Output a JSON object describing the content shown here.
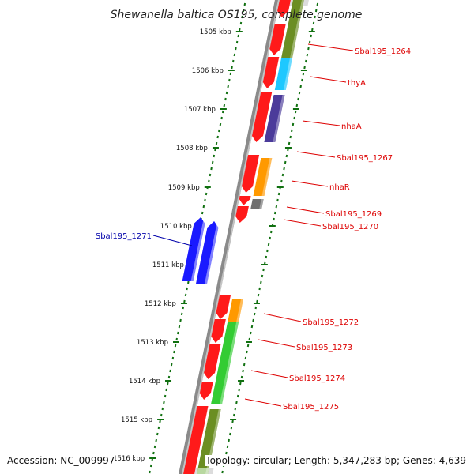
{
  "title": "Shewanella baltica OS195, complete genome",
  "footer": {
    "accession_label": "Accession:",
    "accession": "NC_009997",
    "topology_label": "Topology:",
    "topology": "circular",
    "length_label": "Length:",
    "length": "5,347,283 bp",
    "genes_label": "Genes:",
    "genes": "4,639"
  },
  "colors": {
    "forward_strand_red": "#ff1a1a",
    "reverse_strand_blue": "#1a1aff",
    "label_red": "#dd0000",
    "label_blue": "#0000aa",
    "ticks_green": "#107010"
  },
  "axis_ticks": [
    {
      "label": "1505 kbp"
    },
    {
      "label": "1506 kbp"
    },
    {
      "label": "1507 kbp"
    },
    {
      "label": "1508 kbp"
    },
    {
      "label": "1509 kbp"
    },
    {
      "label": "1510 kbp"
    },
    {
      "label": "1511 kbp"
    },
    {
      "label": "1512 kbp"
    },
    {
      "label": "1513 kbp"
    },
    {
      "label": "1514 kbp"
    },
    {
      "label": "1515 kbp"
    },
    {
      "label": "1516 kbp"
    }
  ],
  "genes": [
    {
      "name": "Sbal195_1264",
      "strand": "forward",
      "color": "#6b8e23"
    },
    {
      "name": "thyA",
      "strand": "forward",
      "color": "#1ec8ff"
    },
    {
      "name": "nhaA",
      "strand": "forward",
      "color": "#4b3b9a"
    },
    {
      "name": "Sbal195_1267",
      "strand": "forward",
      "color": "#ff9900"
    },
    {
      "name": "nhaR",
      "strand": "forward",
      "color": "#ff9900"
    },
    {
      "name": "Sbal195_1269",
      "strand": "forward",
      "color": "#707070"
    },
    {
      "name": "Sbal195_1270",
      "strand": "forward",
      "color": ""
    },
    {
      "name": "Sbal195_1271",
      "strand": "reverse",
      "color": ""
    },
    {
      "name": "Sbal195_1272",
      "strand": "forward",
      "color": "#ff9900"
    },
    {
      "name": "Sbal195_1273",
      "strand": "forward",
      "color": "#33cc33"
    },
    {
      "name": "Sbal195_1274",
      "strand": "forward",
      "color": "#33cc33"
    },
    {
      "name": "Sbal195_1275",
      "strand": "forward",
      "color": "#33cc33"
    }
  ]
}
